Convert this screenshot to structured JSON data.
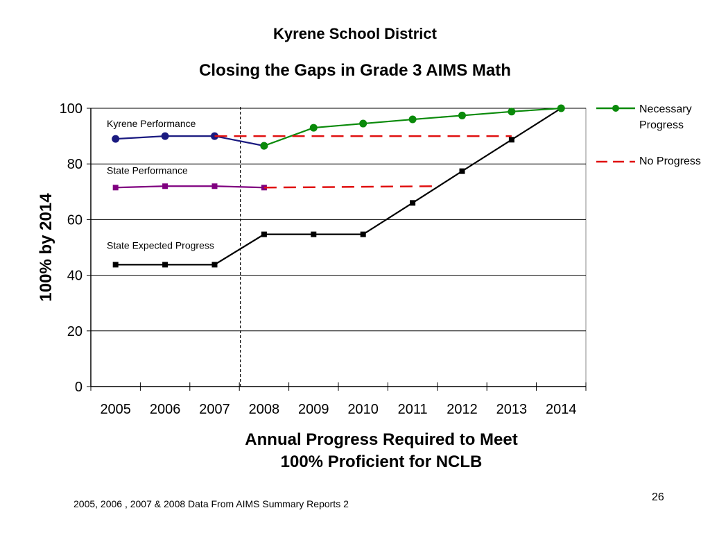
{
  "header": {
    "title": "Kyrene School District",
    "subtitle": "Closing the Gaps in Grade 3 AIMS Math"
  },
  "footer": {
    "source": "2005, 2006 , 2007 & 2008 Data From AIMS Summary Reports 2",
    "page_number": "26"
  },
  "colors": {
    "kyrene": "#1a1a80",
    "state": "#800080",
    "expected": "#000000",
    "necessary": "#0a8a0a",
    "no_progress": "#e01010",
    "grid": "#000000"
  },
  "chart_data": {
    "type": "line",
    "categories": [
      "2005",
      "2006",
      "2007",
      "2008",
      "2009",
      "2010",
      "2011",
      "2012",
      "2013",
      "2014"
    ],
    "ylabel": "100% by 2014",
    "xlabel_lines": [
      "Annual Progress Required to Meet",
      "100% Proficient for NCLB"
    ],
    "ylim": [
      0,
      100
    ],
    "yticks": [
      0,
      20,
      40,
      60,
      80,
      100
    ],
    "grid": true,
    "legend_position": "right",
    "series": [
      {
        "name": "Kyrene Performance",
        "key": "kyrene",
        "marker": "circle",
        "dash": false,
        "values": [
          89,
          90,
          90,
          86.5,
          null,
          null,
          null,
          null,
          null,
          null
        ]
      },
      {
        "name": "State Performance",
        "key": "state",
        "marker": "square",
        "dash": false,
        "values": [
          71.5,
          72,
          72,
          71.5,
          null,
          null,
          null,
          null,
          null,
          null
        ]
      },
      {
        "name": "State Expected Progress",
        "key": "expected",
        "marker": "square",
        "dash": false,
        "values": [
          43.8,
          43.8,
          43.8,
          54.7,
          54.7,
          54.7,
          66,
          77.4,
          88.7,
          100
        ]
      },
      {
        "name": "Necessary Progress",
        "key": "necessary",
        "marker": "circle",
        "dash": false,
        "values": [
          null,
          null,
          null,
          86.5,
          93,
          94.5,
          96,
          97.4,
          98.8,
          100
        ]
      },
      {
        "name": "No Progress",
        "key": "no_progress",
        "marker": "none",
        "dash": true,
        "points": [
          [
            2,
            90
          ],
          [
            8,
            90
          ]
        ]
      },
      {
        "name": "No Progress",
        "key": "no_progress",
        "marker": "none",
        "dash": true,
        "points": [
          [
            3,
            71.5
          ],
          [
            6.5,
            72
          ]
        ]
      }
    ],
    "vertical_marker": {
      "after_category": "2008"
    },
    "annotations": [
      {
        "text": "Kyrene Performance",
        "series": "kyrene"
      },
      {
        "text": "State Performance",
        "series": "state"
      },
      {
        "text": "State Expected Progress",
        "series": "expected"
      }
    ],
    "legend": [
      {
        "label": "Necessary Progress",
        "key": "necessary",
        "marker": "circle",
        "dash": false
      },
      {
        "label": "No Progress",
        "key": "no_progress",
        "marker": "none",
        "dash": true
      }
    ]
  }
}
